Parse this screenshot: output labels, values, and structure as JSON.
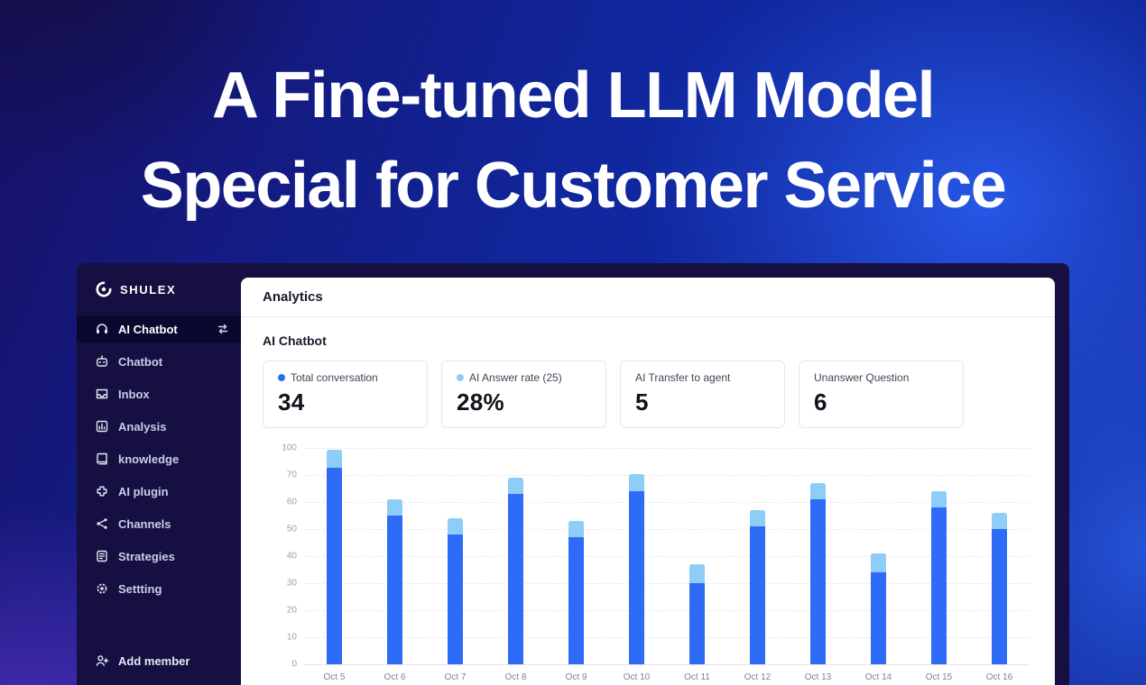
{
  "hero": {
    "title_line1": "A Fine-tuned LLM Model",
    "title_line2": "Special for Customer Service"
  },
  "sidebar": {
    "logo": "SHULEX",
    "items": [
      {
        "label": "AI Chatbot",
        "icon": "headset-icon",
        "active": true
      },
      {
        "label": "Chatbot",
        "icon": "robot-icon",
        "active": false
      },
      {
        "label": "Inbox",
        "icon": "inbox-icon",
        "active": false
      },
      {
        "label": "Analysis",
        "icon": "analysis-icon",
        "active": false
      },
      {
        "label": "knowledge",
        "icon": "book-icon",
        "active": false
      },
      {
        "label": "AI plugin",
        "icon": "plugin-icon",
        "active": false
      },
      {
        "label": "Channels",
        "icon": "share-icon",
        "active": false
      },
      {
        "label": "Strategies",
        "icon": "document-icon",
        "active": false
      },
      {
        "label": "Settting",
        "icon": "gear-icon",
        "active": false
      }
    ],
    "footer_item": "Add member"
  },
  "main": {
    "header": "Analytics",
    "section_title": "AI Chatbot",
    "cards": [
      {
        "label": "Total conversation",
        "value": "34",
        "dot": "#2e6bf6"
      },
      {
        "label": "AI Answer rate (25)",
        "value": "28%",
        "dot": "#8fcdf9"
      },
      {
        "label": "AI Transfer to agent",
        "value": "5",
        "dot": null
      },
      {
        "label": "Unanswer Question",
        "value": "6",
        "dot": null
      }
    ]
  },
  "colors": {
    "bar_primary": "#2e6bf6",
    "bar_secondary": "#8fcdf9",
    "sidebar_bg": "#161042",
    "active_item_bg": "#0b0830"
  },
  "chart_data": {
    "type": "bar",
    "stacked": true,
    "title": "",
    "xlabel": "",
    "ylabel": "",
    "categories": [
      "Oct 5",
      "Oct 6",
      "Oct 7",
      "Oct 8",
      "Oct 9",
      "Oct 10",
      "Oct 11",
      "Oct 12",
      "Oct 13",
      "Oct 14",
      "Oct 15",
      "Oct 16"
    ],
    "series": [
      {
        "name": "bottom-segment",
        "color": "#2e6bf6",
        "values": [
          78,
          55,
          48,
          63,
          47,
          64,
          30,
          51,
          61,
          34,
          58,
          50
        ]
      },
      {
        "name": "top-segment",
        "color": "#8fcdf9",
        "values": [
          20,
          6,
          6,
          6,
          6,
          7,
          7,
          6,
          6,
          7,
          6,
          6
        ]
      }
    ],
    "y_ticks": [
      0,
      10,
      20,
      30,
      40,
      50,
      60,
      70,
      100
    ],
    "grid": "dashed-horizontal",
    "legend": "none"
  }
}
